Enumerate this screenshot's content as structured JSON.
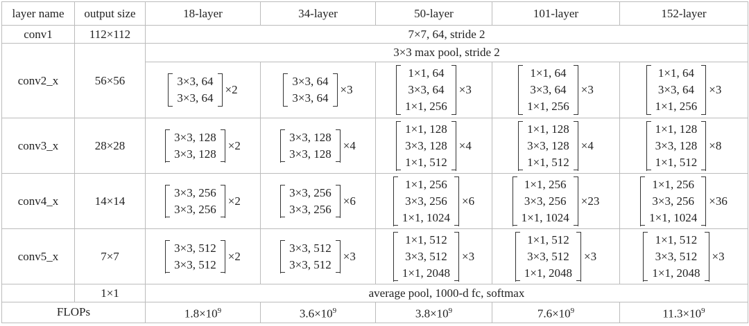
{
  "table": {
    "header": [
      "layer name",
      "output size",
      "18-layer",
      "34-layer",
      "50-layer",
      "101-layer",
      "152-layer"
    ],
    "conv1": {
      "name": "conv1",
      "size": "112×112",
      "spec": "7×7, 64, stride 2"
    },
    "pool": "3×3 max pool, stride 2",
    "stages": [
      {
        "name": "conv2_x",
        "size": "56×56",
        "blocks": [
          {
            "lines": [
              "3×3, 64",
              "3×3, 64"
            ],
            "repeat": "×2"
          },
          {
            "lines": [
              "3×3, 64",
              "3×3, 64"
            ],
            "repeat": "×3"
          },
          {
            "lines": [
              "1×1, 64",
              "3×3, 64",
              "1×1, 256"
            ],
            "repeat": "×3"
          },
          {
            "lines": [
              "1×1, 64",
              "3×3, 64",
              "1×1, 256"
            ],
            "repeat": "×3"
          },
          {
            "lines": [
              "1×1, 64",
              "3×3, 64",
              "1×1, 256"
            ],
            "repeat": "×3"
          }
        ]
      },
      {
        "name": "conv3_x",
        "size": "28×28",
        "blocks": [
          {
            "lines": [
              "3×3, 128",
              "3×3, 128"
            ],
            "repeat": "×2"
          },
          {
            "lines": [
              "3×3, 128",
              "3×3, 128"
            ],
            "repeat": "×4"
          },
          {
            "lines": [
              "1×1, 128",
              "3×3, 128",
              "1×1, 512"
            ],
            "repeat": "×4"
          },
          {
            "lines": [
              "1×1, 128",
              "3×3, 128",
              "1×1, 512"
            ],
            "repeat": "×4"
          },
          {
            "lines": [
              "1×1, 128",
              "3×3, 128",
              "1×1, 512"
            ],
            "repeat": "×8"
          }
        ]
      },
      {
        "name": "conv4_x",
        "size": "14×14",
        "blocks": [
          {
            "lines": [
              "3×3, 256",
              "3×3, 256"
            ],
            "repeat": "×2"
          },
          {
            "lines": [
              "3×3, 256",
              "3×3, 256"
            ],
            "repeat": "×6"
          },
          {
            "lines": [
              "1×1, 256",
              "3×3, 256",
              "1×1, 1024"
            ],
            "repeat": "×6"
          },
          {
            "lines": [
              "1×1, 256",
              "3×3, 256",
              "1×1, 1024"
            ],
            "repeat": "×23"
          },
          {
            "lines": [
              "1×1, 256",
              "3×3, 256",
              "1×1, 1024"
            ],
            "repeat": "×36"
          }
        ]
      },
      {
        "name": "conv5_x",
        "size": "7×7",
        "blocks": [
          {
            "lines": [
              "3×3, 512",
              "3×3, 512"
            ],
            "repeat": "×2"
          },
          {
            "lines": [
              "3×3, 512",
              "3×3, 512"
            ],
            "repeat": "×3"
          },
          {
            "lines": [
              "1×1, 512",
              "3×3, 512",
              "1×1, 2048"
            ],
            "repeat": "×3"
          },
          {
            "lines": [
              "1×1, 512",
              "3×3, 512",
              "1×1, 2048"
            ],
            "repeat": "×3"
          },
          {
            "lines": [
              "1×1, 512",
              "3×3, 512",
              "1×1, 2048"
            ],
            "repeat": "×3"
          }
        ]
      }
    ],
    "final": {
      "size": "1×1",
      "spec": "average pool, 1000-d fc, softmax"
    },
    "flops": {
      "name": "FLOPs",
      "values": [
        {
          "base": "1.8×10",
          "exp": "9"
        },
        {
          "base": "3.6×10",
          "exp": "9"
        },
        {
          "base": "3.8×10",
          "exp": "9"
        },
        {
          "base": "7.6×10",
          "exp": "9"
        },
        {
          "base": "11.3×10",
          "exp": "9"
        }
      ]
    }
  }
}
